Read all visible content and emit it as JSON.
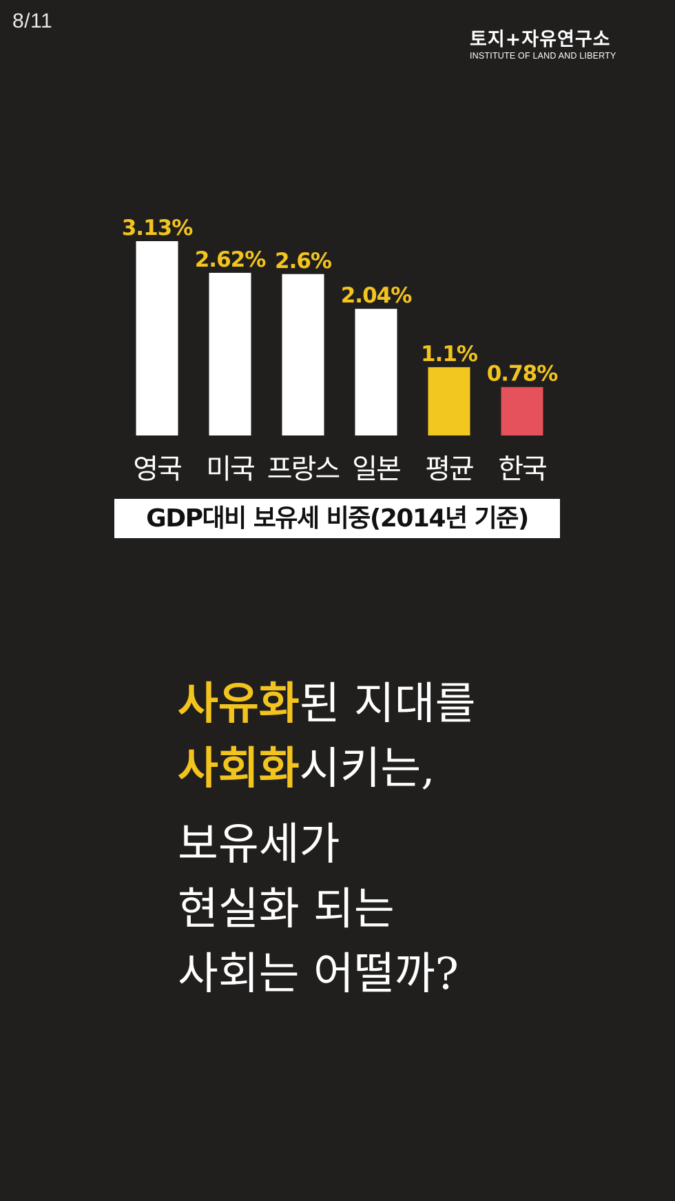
{
  "page_counter": "8/11",
  "logo": {
    "korean": "토지+자유연구소",
    "english": "INSTITUTE OF LAND AND LIBERTY"
  },
  "chart_data": {
    "type": "bar",
    "title": "GDP대비 보유세 비중(2014년 기준)",
    "categories": [
      "영국",
      "미국",
      "프랑스",
      "일본",
      "평균",
      "한국"
    ],
    "values": [
      3.13,
      2.62,
      2.6,
      2.04,
      1.1,
      0.78
    ],
    "value_labels": [
      "3.13%",
      "2.62%",
      "2.6%",
      "2.04%",
      "1.1%",
      "0.78%"
    ],
    "bar_colors": [
      "#ffffff",
      "#ffffff",
      "#ffffff",
      "#ffffff",
      "#f2c71f",
      "#e5525b"
    ],
    "label_color": "#f3c41d",
    "unit": "%",
    "xlabel": "",
    "ylabel": "",
    "ylim": [
      0,
      3.13
    ],
    "grid": false
  },
  "message": {
    "line1_highlight": "사유화",
    "line1_rest": "된 지대를",
    "line2_highlight": "사회화",
    "line2_rest": "시키는,",
    "line3": "보유세가",
    "line4": "현실화 되는",
    "line5": "사회는 어떨까?"
  },
  "colors": {
    "background": "#201f1e",
    "accent": "#f3c41d",
    "korea": "#e5525b",
    "text": "#ffffff"
  }
}
